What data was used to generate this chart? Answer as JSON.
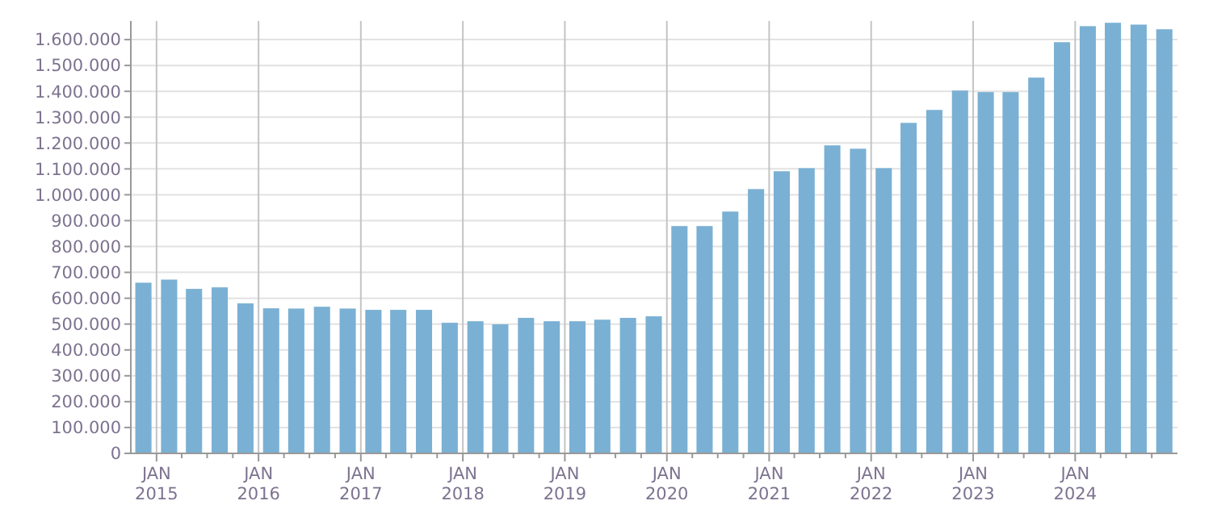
{
  "chart_data": {
    "type": "bar",
    "x": [
      "2014-11-15",
      "2015-02-15",
      "2015-05-15",
      "2015-08-15",
      "2015-11-15",
      "2016-02-15",
      "2016-05-15",
      "2016-08-15",
      "2016-11-15",
      "2017-02-15",
      "2017-05-15",
      "2017-08-15",
      "2017-11-15",
      "2018-02-15",
      "2018-05-15",
      "2018-08-15",
      "2018-11-15",
      "2019-02-15",
      "2019-05-15",
      "2019-08-15",
      "2019-11-15",
      "2020-02-15",
      "2020-05-15",
      "2020-08-15",
      "2020-11-15",
      "2021-02-15",
      "2021-05-15",
      "2021-08-15",
      "2021-11-15",
      "2022-02-15",
      "2022-05-15",
      "2022-08-15",
      "2022-11-15",
      "2023-02-15",
      "2023-05-15",
      "2023-08-15",
      "2023-11-15",
      "2024-02-15",
      "2024-05-15",
      "2024-08-15",
      "2024-11-15"
    ],
    "values": [
      660000,
      672000,
      636000,
      642000,
      580000,
      561000,
      560000,
      567000,
      560000,
      555000,
      555000,
      555000,
      505000,
      511000,
      499000,
      524000,
      511000,
      511000,
      517000,
      524000,
      530000,
      879000,
      879000,
      935000,
      1022000,
      1091000,
      1103000,
      1191000,
      1178000,
      1103000,
      1278000,
      1328000,
      1403000,
      1397000,
      1397000,
      1453000,
      1590000,
      1652000,
      1665000,
      1658000,
      1640000
    ],
    "color": "#7ab0d3",
    "ylim": [
      0,
      1672000
    ],
    "yticks": [
      0,
      {
        "value": 100000,
        "label": "100.000"
      },
      {
        "value": 200000,
        "label": "200.000"
      },
      {
        "value": 300000,
        "label": "300.000"
      },
      {
        "value": 400000,
        "label": "400.000"
      },
      {
        "value": 500000,
        "label": "500.000"
      },
      {
        "value": 600000,
        "label": "600.000"
      },
      {
        "value": 700000,
        "label": "700.000"
      },
      {
        "value": 800000,
        "label": "800.000"
      },
      {
        "value": 900000,
        "label": "900.000"
      },
      {
        "value": 1000000,
        "label": "1.000.000"
      },
      {
        "value": 1100000,
        "label": "1.100.000"
      },
      {
        "value": 1200000,
        "label": "1.200.000"
      },
      {
        "value": 1300000,
        "label": "1.300.000"
      },
      {
        "value": 1400000,
        "label": "1.400.000"
      },
      {
        "value": 1500000,
        "label": "1.500.000"
      },
      {
        "value": 1600000,
        "label": "1.600.000"
      }
    ],
    "xlim": [
      "2014-10-01",
      "2025-01-01"
    ],
    "xticks": [
      {
        "value": "2015-01-01",
        "label": "JAN\n2015"
      },
      {
        "value": "2015-04-01",
        "label": null
      },
      {
        "value": "2015-07-01",
        "label": null
      },
      {
        "value": "2015-10-01",
        "label": null
      },
      {
        "value": "2016-01-01",
        "label": "JAN\n2016"
      },
      {
        "value": "2016-04-01",
        "label": null
      },
      {
        "value": "2016-07-01",
        "label": null
      },
      {
        "value": "2016-10-01",
        "label": null
      },
      {
        "value": "2017-01-01",
        "label": "JAN\n2017"
      },
      {
        "value": "2017-04-01",
        "label": null
      },
      {
        "value": "2017-07-01",
        "label": null
      },
      {
        "value": "2017-10-01",
        "label": null
      },
      {
        "value": "2018-01-01",
        "label": "JAN\n2018"
      },
      {
        "value": "2018-04-01",
        "label": null
      },
      {
        "value": "2018-07-01",
        "label": null
      },
      {
        "value": "2018-10-01",
        "label": null
      },
      {
        "value": "2019-01-01",
        "label": "JAN\n2019"
      },
      {
        "value": "2019-04-01",
        "label": null
      },
      {
        "value": "2019-07-01",
        "label": null
      },
      {
        "value": "2019-10-01",
        "label": null
      },
      {
        "value": "2020-01-01",
        "label": "JAN\n2020"
      },
      {
        "value": "2020-04-01",
        "label": null
      },
      {
        "value": "2020-07-01",
        "label": null
      },
      {
        "value": "2020-10-01",
        "label": null
      },
      {
        "value": "2021-01-01",
        "label": "JAN\n2021"
      },
      {
        "value": "2021-04-01",
        "label": null
      },
      {
        "value": "2021-07-01",
        "label": null
      },
      {
        "value": "2021-10-01",
        "label": null
      },
      {
        "value": "2022-01-01",
        "label": "JAN\n2022"
      },
      {
        "value": "2022-04-01",
        "label": null
      },
      {
        "value": "2022-07-01",
        "label": null
      },
      {
        "value": "2022-10-01",
        "label": null
      },
      {
        "value": "2023-01-01",
        "label": "JAN\n2023"
      },
      {
        "value": "2023-04-01",
        "label": null
      },
      {
        "value": "2023-07-01",
        "label": null
      },
      {
        "value": "2023-10-01",
        "label": null
      },
      {
        "value": "2024-01-01",
        "label": "JAN\n2024"
      },
      {
        "value": "2024-04-01",
        "label": null
      },
      {
        "value": "2024-07-01",
        "label": null
      },
      {
        "value": "2024-10-01",
        "label": null
      }
    ],
    "grid": true
  }
}
